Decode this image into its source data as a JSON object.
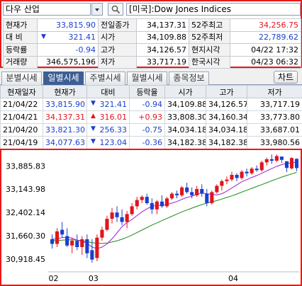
{
  "search": {
    "symbol_value": "다우 산업",
    "symbol_name": "[미국]:Dow Jones Indices"
  },
  "quote": {
    "rows": [
      [
        {
          "t": "현재가",
          "c": "lbl"
        },
        {
          "t": "33,815.90",
          "c": "num blue"
        },
        {
          "t": "전일종가",
          "c": "lbl"
        },
        {
          "t": "34,137.31",
          "c": "num"
        },
        {
          "t": "52주최고",
          "c": "lbl"
        },
        {
          "t": "34,256.75",
          "c": "num red"
        }
      ],
      [
        {
          "t": "대  비",
          "c": "lbl"
        },
        {
          "t": "321.41",
          "c": "num blue",
          "arrow": "▼"
        },
        {
          "t": "시가",
          "c": "lbl"
        },
        {
          "t": "34,109.88",
          "c": "num"
        },
        {
          "t": "52주최저",
          "c": "lbl"
        },
        {
          "t": "22,789.62",
          "c": "num blue"
        }
      ],
      [
        {
          "t": "등락률",
          "c": "lbl"
        },
        {
          "t": "-0.94",
          "c": "num blue"
        },
        {
          "t": "고가",
          "c": "lbl"
        },
        {
          "t": "34,126.57",
          "c": "num"
        },
        {
          "t": "현지시각",
          "c": "lbl"
        },
        {
          "t": "04/22 17:32",
          "c": "num"
        }
      ],
      [
        {
          "t": "거래량",
          "c": "lbl"
        },
        {
          "t": "346,575,196",
          "c": "num"
        },
        {
          "t": "저가",
          "c": "lbl"
        },
        {
          "t": "33,717.19",
          "c": "num"
        },
        {
          "t": "한국시각",
          "c": "lbl"
        },
        {
          "t": "04/23 06:32",
          "c": "num"
        }
      ]
    ]
  },
  "tabs": [
    {
      "label": "분별시세",
      "active": false
    },
    {
      "label": "일별시세",
      "active": true
    },
    {
      "label": "주별시세",
      "active": false
    },
    {
      "label": "월별시세",
      "active": false
    },
    {
      "label": "종목정보",
      "active": false
    }
  ],
  "chart_button_label": "차트",
  "daily": {
    "headers": [
      "현재일자",
      "현재가",
      "대비",
      "등락율",
      "시가",
      "고가",
      "저가"
    ],
    "rows": [
      {
        "date": "21/04/22",
        "close": "33,815.90",
        "close_color": "blue",
        "arrow": "▼",
        "arrow_color": "blue",
        "change": "321.41",
        "change_color": "blue",
        "rate": "-0.94",
        "rate_color": "blue",
        "open": "34,109.88",
        "high": "34,126.57",
        "low": "33,717.19"
      },
      {
        "date": "21/04/21",
        "close": "34,137.31",
        "close_color": "red",
        "arrow": "▲",
        "arrow_color": "red",
        "change": "316.01",
        "change_color": "red",
        "rate": "+0.93",
        "rate_color": "red",
        "open": "33,808.30",
        "high": "34,160.34",
        "low": "33,773.80"
      },
      {
        "date": "21/04/20",
        "close": "33,821.30",
        "close_color": "blue",
        "arrow": "▼",
        "arrow_color": "blue",
        "change": "256.33",
        "change_color": "blue",
        "rate": "-0.75",
        "rate_color": "blue",
        "open": "34,034.18",
        "high": "34,034.18",
        "low": "33,687.01"
      },
      {
        "date": "21/04/19",
        "close": "34,077.63",
        "close_color": "blue",
        "arrow": "▼",
        "arrow_color": "blue",
        "change": "123.04",
        "change_color": "blue",
        "rate": "-0.36",
        "rate_color": "blue",
        "open": "34,182.38",
        "high": "34,182.38",
        "low": "33,980.56"
      }
    ]
  },
  "colors": {
    "up": "#e0151d",
    "down": "#1a3fcc",
    "ma_short": "#a020c8",
    "ma_long": "#1c8a1c",
    "frame": "#e81919"
  },
  "chart_data": {
    "type": "candlestick",
    "y_ticks": [
      "33,885.83",
      "33,143.98",
      "32,402.14",
      "31,660.30",
      "30,918.45"
    ],
    "y_tick_values": [
      33885.83,
      33143.98,
      32402.14,
      31660.3,
      30918.45
    ],
    "ylim": [
      30600,
      34300
    ],
    "x_ticks": [
      {
        "label": "02",
        "index": 0
      },
      {
        "label": "03",
        "index": 8
      },
      {
        "label": "04",
        "index": 36
      }
    ],
    "candles": [
      {
        "o": 31550,
        "h": 31700,
        "l": 31250,
        "c": 31400
      },
      {
        "o": 31400,
        "h": 31900,
        "l": 31300,
        "c": 31800
      },
      {
        "o": 31850,
        "h": 32100,
        "l": 31600,
        "c": 31700
      },
      {
        "o": 31650,
        "h": 31900,
        "l": 31300,
        "c": 31350
      },
      {
        "o": 31350,
        "h": 31600,
        "l": 31100,
        "c": 31500
      },
      {
        "o": 31500,
        "h": 31700,
        "l": 31200,
        "c": 31300
      },
      {
        "o": 31300,
        "h": 31650,
        "l": 31050,
        "c": 31550
      },
      {
        "o": 31550,
        "h": 31700,
        "l": 30950,
        "c": 31100
      },
      {
        "o": 31200,
        "h": 31550,
        "l": 30800,
        "c": 30900
      },
      {
        "o": 30950,
        "h": 31700,
        "l": 30850,
        "c": 31600
      },
      {
        "o": 31600,
        "h": 31950,
        "l": 31500,
        "c": 31850
      },
      {
        "o": 31850,
        "h": 32300,
        "l": 31800,
        "c": 32200
      },
      {
        "o": 32200,
        "h": 32550,
        "l": 32050,
        "c": 32400
      },
      {
        "o": 32400,
        "h": 32600,
        "l": 32100,
        "c": 32250
      },
      {
        "o": 32250,
        "h": 32500,
        "l": 32000,
        "c": 32100
      },
      {
        "o": 32100,
        "h": 32450,
        "l": 31900,
        "c": 32350
      },
      {
        "o": 32350,
        "h": 32700,
        "l": 32300,
        "c": 32600
      },
      {
        "o": 32600,
        "h": 32900,
        "l": 32500,
        "c": 32800
      },
      {
        "o": 32800,
        "h": 32950,
        "l": 32700,
        "c": 32900
      },
      {
        "o": 32900,
        "h": 33000,
        "l": 32650,
        "c": 32700
      },
      {
        "o": 32700,
        "h": 32850,
        "l": 32350,
        "c": 32500
      },
      {
        "o": 32500,
        "h": 32800,
        "l": 32350,
        "c": 32750
      },
      {
        "o": 32750,
        "h": 32950,
        "l": 32550,
        "c": 32600
      },
      {
        "o": 32600,
        "h": 32900,
        "l": 32550,
        "c": 32850
      },
      {
        "o": 32850,
        "h": 33050,
        "l": 32800,
        "c": 33000
      },
      {
        "o": 33000,
        "h": 33100,
        "l": 32850,
        "c": 32950
      },
      {
        "o": 32950,
        "h": 33250,
        "l": 32900,
        "c": 33200
      },
      {
        "o": 33200,
        "h": 33350,
        "l": 33000,
        "c": 33050
      },
      {
        "o": 33050,
        "h": 33200,
        "l": 32850,
        "c": 32950
      },
      {
        "o": 32950,
        "h": 33250,
        "l": 32900,
        "c": 33150
      },
      {
        "o": 33150,
        "h": 33300,
        "l": 32900,
        "c": 33000
      },
      {
        "o": 33000,
        "h": 33150,
        "l": 32600,
        "c": 32700
      },
      {
        "o": 32700,
        "h": 33100,
        "l": 32650,
        "c": 33050
      },
      {
        "o": 33050,
        "h": 33300,
        "l": 33000,
        "c": 33250
      },
      {
        "o": 33250,
        "h": 33450,
        "l": 33100,
        "c": 33400
      },
      {
        "o": 33400,
        "h": 33550,
        "l": 33300,
        "c": 33450
      },
      {
        "o": 33450,
        "h": 33700,
        "l": 33400,
        "c": 33600
      },
      {
        "o": 33600,
        "h": 33650,
        "l": 33400,
        "c": 33500
      },
      {
        "o": 33500,
        "h": 33750,
        "l": 33450,
        "c": 33700
      },
      {
        "o": 33700,
        "h": 33800,
        "l": 33550,
        "c": 33650
      },
      {
        "o": 33650,
        "h": 33850,
        "l": 33600,
        "c": 33800
      },
      {
        "o": 33800,
        "h": 33900,
        "l": 33700,
        "c": 33750
      },
      {
        "o": 33750,
        "h": 34050,
        "l": 33700,
        "c": 34000
      },
      {
        "o": 34000,
        "h": 34150,
        "l": 33900,
        "c": 34100
      },
      {
        "o": 34100,
        "h": 34250,
        "l": 33950,
        "c": 34050
      },
      {
        "o": 34050,
        "h": 34250,
        "l": 34000,
        "c": 34200
      },
      {
        "o": 34182,
        "h": 34182,
        "l": 33981,
        "c": 34078
      },
      {
        "o": 34034,
        "h": 34034,
        "l": 33687,
        "c": 33821
      },
      {
        "o": 33808,
        "h": 34160,
        "l": 33774,
        "c": 34137
      },
      {
        "o": 34110,
        "h": 34127,
        "l": 33717,
        "c": 33816
      }
    ],
    "ma_short": [
      31550,
      31560,
      31600,
      31620,
      31580,
      31520,
      31480,
      31420,
      31300,
      31250,
      31300,
      31400,
      31560,
      31750,
      31950,
      32080,
      32180,
      32300,
      32420,
      32520,
      32600,
      32620,
      32640,
      32660,
      32700,
      32750,
      32820,
      32880,
      32920,
      32980,
      33020,
      33000,
      32980,
      32960,
      33000,
      33080,
      33180,
      33280,
      33380,
      33450,
      33520,
      33580,
      33650,
      33730,
      33800,
      33870,
      33930,
      33960,
      33990,
      34000
    ],
    "ma_long": [
      31500,
      31510,
      31520,
      31530,
      31530,
      31520,
      31500,
      31470,
      31440,
      31420,
      31420,
      31430,
      31460,
      31500,
      31550,
      31610,
      31680,
      31760,
      31840,
      31920,
      32000,
      32070,
      32140,
      32210,
      32280,
      32350,
      32420,
      32480,
      32540,
      32600,
      32650,
      32700,
      32740,
      32780,
      32830,
      32880,
      32930,
      32990,
      33050,
      33110,
      33170,
      33230,
      33290,
      33350,
      33410,
      33470,
      33530,
      33580,
      33630,
      33680
    ]
  }
}
